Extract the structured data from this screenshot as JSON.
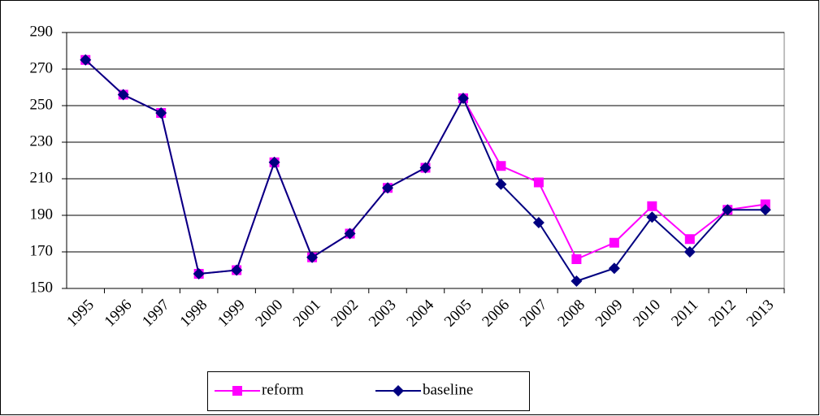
{
  "chart_data": {
    "type": "line",
    "categories": [
      "1995",
      "1996",
      "1997",
      "1998",
      "1999",
      "2000",
      "2001",
      "2002",
      "2003",
      "2004",
      "2005",
      "2006",
      "2007",
      "2008",
      "2009",
      "2010",
      "2011",
      "2012",
      "2013"
    ],
    "series": [
      {
        "name": "reform",
        "color": "#ff00ff",
        "marker": "square",
        "values": [
          275,
          256,
          246,
          158,
          160,
          219,
          167,
          180,
          205,
          216,
          254,
          217,
          208,
          166,
          175,
          195,
          177,
          193,
          196
        ]
      },
      {
        "name": "baseline",
        "color": "#000080",
        "marker": "diamond",
        "values": [
          275,
          256,
          246,
          158,
          160,
          219,
          167,
          180,
          205,
          216,
          254,
          207,
          186,
          154,
          161,
          189,
          170,
          193,
          193
        ]
      }
    ],
    "ylim": [
      150,
      290
    ],
    "yticks": [
      150,
      170,
      190,
      210,
      230,
      250,
      270,
      290
    ],
    "grid": true,
    "legend": "bottom"
  }
}
